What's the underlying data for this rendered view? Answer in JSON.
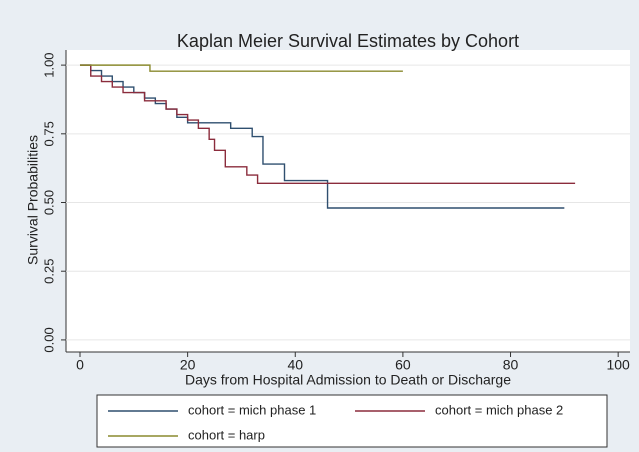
{
  "chart_data": {
    "type": "line",
    "step": true,
    "title": "Kaplan Meier Survival Estimates by Cohort",
    "x_label": "Days from Hospital Admission to Death or Discharge",
    "y_label": "Survival Probabilities",
    "xlim": [
      -2.6,
      102.2
    ],
    "ylim": [
      -0.044,
      1.055
    ],
    "xticks": [
      0,
      20,
      40,
      60,
      80,
      100
    ],
    "yticks": [
      {
        "value": 0,
        "label": "0.00"
      },
      {
        "value": 0.25,
        "label": "0.25"
      },
      {
        "value": 0.5,
        "label": "0.50"
      },
      {
        "value": 0.75,
        "label": "0.75"
      },
      {
        "value": 1,
        "label": "1.00"
      }
    ],
    "grid": true,
    "legend": "bottom",
    "series": [
      {
        "name": "cohort = mich phase 1",
        "color": "#2f4f6f",
        "x": [
          0,
          2,
          4,
          6,
          8,
          10,
          12,
          14,
          16,
          18,
          20,
          28,
          32,
          34,
          38,
          46,
          90
        ],
        "values": [
          1,
          0.98,
          0.96,
          0.94,
          0.92,
          0.9,
          0.88,
          0.86,
          0.84,
          0.81,
          0.79,
          0.77,
          0.74,
          0.64,
          0.58,
          0.48,
          0.48
        ]
      },
      {
        "name": "cohort = mich phase 2",
        "color": "#8b2c3c",
        "x": [
          0,
          2,
          4,
          6,
          8,
          12,
          16,
          18,
          20,
          22,
          24,
          25,
          27,
          31,
          33,
          92
        ],
        "values": [
          1,
          0.96,
          0.94,
          0.92,
          0.9,
          0.87,
          0.84,
          0.82,
          0.8,
          0.77,
          0.73,
          0.69,
          0.63,
          0.6,
          0.57,
          0.57
        ]
      },
      {
        "name": "cohort = harp",
        "color": "#8a8a2e",
        "x": [
          0,
          13,
          60
        ],
        "values": [
          1,
          0.978,
          0.978
        ]
      }
    ]
  }
}
